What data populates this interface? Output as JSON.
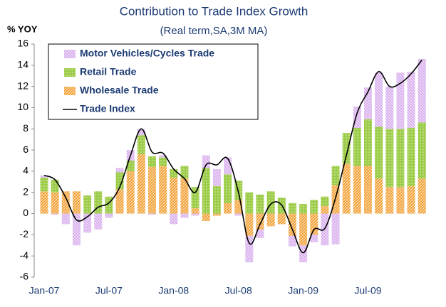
{
  "chart_data": {
    "type": "bar",
    "title": "Contribution to Trade Index Growth",
    "subtitle": "(Real term,SA,3M MA)",
    "y_label": "% YOY",
    "stacked": true,
    "categories": [
      "Jan-07",
      null,
      null,
      null,
      null,
      null,
      "Jul-07",
      null,
      null,
      null,
      null,
      null,
      "Jan-08",
      null,
      null,
      null,
      null,
      null,
      "Jul-08",
      null,
      null,
      null,
      null,
      null,
      "Jan-09",
      null,
      null,
      null,
      null,
      null,
      "Jul-09",
      null,
      null,
      null,
      null,
      null
    ],
    "series": [
      {
        "name": "Motor Vehicles/Cycles Trade",
        "type": "bar",
        "color": "#d9b0ee",
        "values": [
          0.2,
          -0.1,
          -1.0,
          -3.0,
          -1.8,
          -1.5,
          -0.4,
          0.4,
          1.0,
          0.6,
          -0.1,
          0.2,
          -1.0,
          -0.4,
          -0.2,
          1.2,
          1.6,
          1.6,
          -0.2,
          -2.5,
          -0.8,
          0.0,
          0.0,
          -1.0,
          -1.6,
          -0.7,
          -3.0,
          -2.9,
          0.0,
          2.0,
          3.0,
          5.1,
          4.0,
          5.3,
          5.3,
          6.0
        ]
      },
      {
        "name": "Retail Trade",
        "type": "bar",
        "color": "#9ccc48",
        "values": [
          1.3,
          1.2,
          0.0,
          0.0,
          1.7,
          2.1,
          1.6,
          1.6,
          1.0,
          1.8,
          1.0,
          0.8,
          0.8,
          1.2,
          2.0,
          4.3,
          2.6,
          2.7,
          1.8,
          2.0,
          1.8,
          2.1,
          1.5,
          1.0,
          0.9,
          1.3,
          0.9,
          1.8,
          2.9,
          3.6,
          4.4,
          4.9,
          5.5,
          5.5,
          5.5,
          5.3
        ]
      },
      {
        "name": "Wholesale Trade",
        "type": "bar",
        "color": "#f2a33a",
        "values": [
          2.1,
          2.0,
          2.1,
          2.1,
          0.0,
          0.0,
          0.0,
          2.3,
          4.0,
          5.6,
          4.4,
          4.5,
          3.4,
          3.3,
          0.5,
          -0.7,
          -0.2,
          1.0,
          1.3,
          -2.1,
          -1.5,
          -1.2,
          -1.0,
          -2.1,
          -3.0,
          -2.0,
          0.7,
          2.7,
          4.7,
          4.5,
          4.5,
          3.3,
          2.5,
          2.5,
          2.6,
          3.3
        ]
      },
      {
        "name": "Trade Index",
        "type": "line",
        "color": "#000000",
        "values": [
          3.6,
          3.2,
          1.5,
          -0.6,
          -0.3,
          0.6,
          1.0,
          2.5,
          5.5,
          8.0,
          5.8,
          5.7,
          4.2,
          3.3,
          2.0,
          4.6,
          4.6,
          5.2,
          2.0,
          -2.8,
          -1.0,
          0.9,
          0.8,
          -1.5,
          -3.7,
          -1.5,
          -1.4,
          1.5,
          5.5,
          9.5,
          11.5,
          13.4,
          12.0,
          12.3,
          13.2,
          14.5
        ]
      }
    ],
    "ylim": [
      -6,
      16
    ],
    "yticks": [
      -6,
      -4,
      -2,
      0,
      2,
      4,
      6,
      8,
      10,
      12,
      14,
      16
    ],
    "legend": "upper left"
  }
}
